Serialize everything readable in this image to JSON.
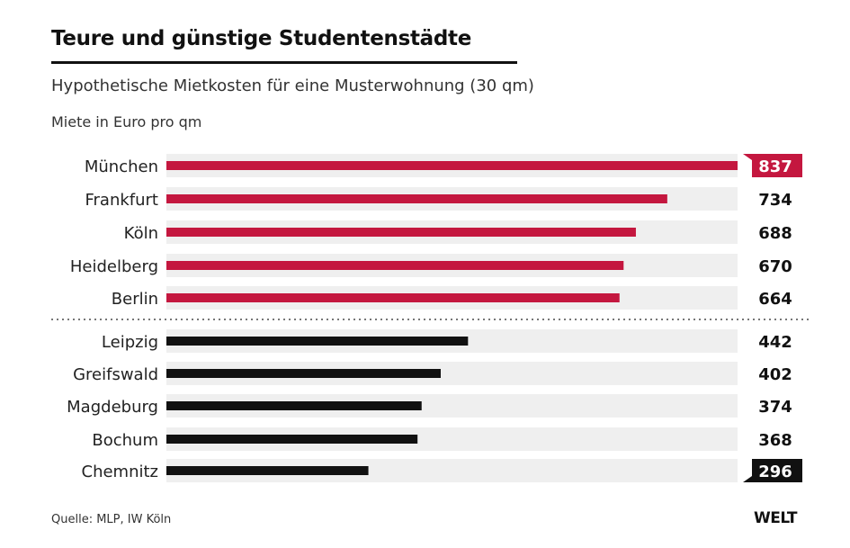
{
  "chart_data": {
    "type": "bar",
    "title": "Teure und günstige Studentenstädte",
    "subtitle": "Hypothetische Mietkosten für eine Musterwohnung (30 qm)",
    "ylabel": "Miete in Euro pro qm",
    "categories": [
      "München",
      "Frankfurt",
      "Köln",
      "Heidelberg",
      "Berlin",
      "Leipzig",
      "Greifswald",
      "Magdeburg",
      "Bochum",
      "Chemnitz"
    ],
    "values": [
      837,
      734,
      688,
      670,
      664,
      442,
      402,
      374,
      368,
      296
    ],
    "groups": [
      "expensive",
      "expensive",
      "expensive",
      "expensive",
      "expensive",
      "cheap",
      "cheap",
      "cheap",
      "cheap",
      "cheap"
    ],
    "xlim": [
      0,
      837
    ],
    "colors": {
      "expensive": "#c4173f",
      "cheap": "#111111",
      "track": "#efefef"
    },
    "highlighted": [
      "München",
      "Chemnitz"
    ]
  },
  "source": "Quelle: MLP, IW Köln",
  "logo": "WELT"
}
